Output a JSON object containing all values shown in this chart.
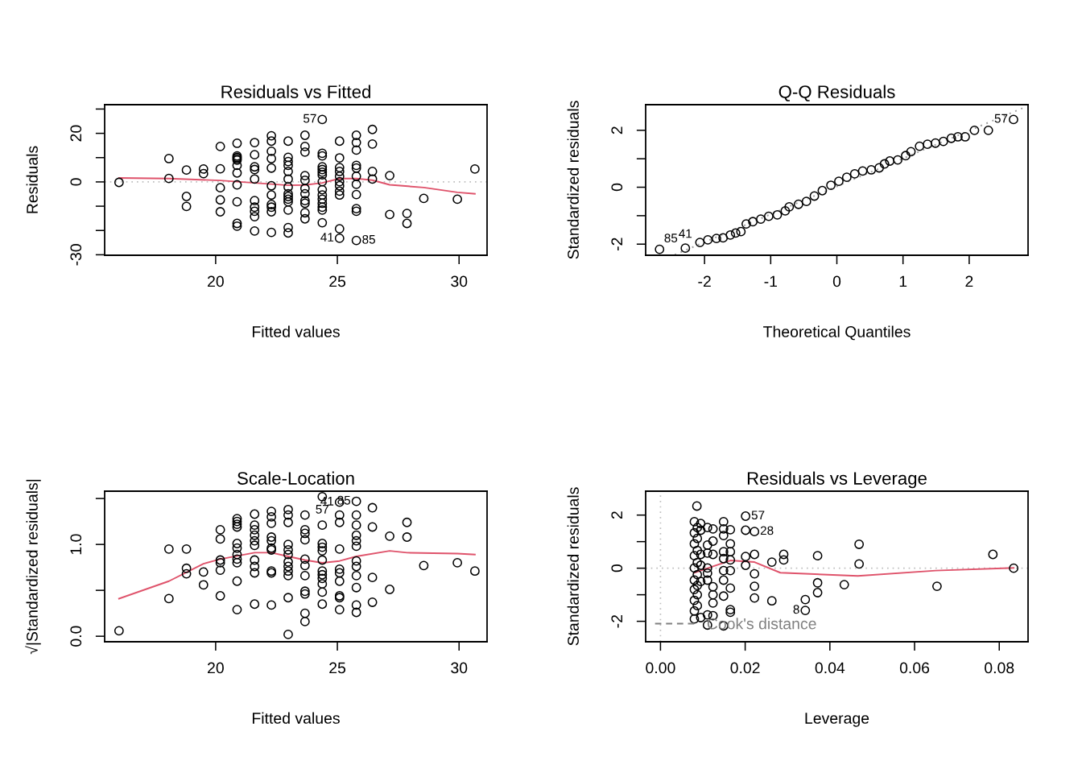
{
  "chart_data": [
    {
      "type": "scatter",
      "title": "Residuals vs Fitted",
      "xlabel": "Fitted values",
      "ylabel": "Residuals",
      "xlim": [
        15.44,
        31.15
      ],
      "ylim": [
        -30.2,
        31.8
      ],
      "xticks": [
        20,
        25,
        30
      ],
      "yticks": [
        -30,
        {
          "value": -20,
          "label": null
        },
        {
          "value": -10,
          "label": null
        },
        0,
        {
          "value": 10,
          "label": null
        },
        20,
        {
          "value": 30,
          "label": null
        }
      ],
      "ref_lines": [
        {
          "axis": "y",
          "value": 0,
          "color": "#bebebe",
          "line_style": "dotted"
        }
      ],
      "annotations": [
        {
          "text": "57",
          "x": 24.38,
          "y": 25.7
        },
        {
          "text": "41",
          "x": 25.09,
          "y": -23.2
        },
        {
          "text": "85",
          "x": 25.78,
          "y": -24.1
        }
      ],
      "series": [
        {
          "marker": "circle",
          "color": "#000000",
          "x": [
            16.03,
            18.08,
            18.08,
            18.8,
            18.8,
            18.8,
            19.5,
            19.5,
            20.19,
            20.19,
            20.19,
            20.19,
            20.19,
            20.88,
            20.88,
            20.88,
            20.88,
            20.88,
            20.88,
            20.88,
            20.88,
            20.88,
            20.88,
            20.88,
            21.6,
            21.6,
            21.6,
            21.6,
            21.6,
            21.6,
            21.6,
            21.6,
            21.6,
            21.6,
            22.29,
            22.29,
            22.29,
            22.29,
            22.29,
            22.29,
            22.29,
            22.29,
            22.29,
            22.29,
            22.29,
            22.98,
            22.98,
            22.98,
            22.98,
            22.98,
            22.98,
            22.98,
            22.98,
            22.98,
            22.98,
            22.98,
            22.98,
            22.98,
            22.98,
            23.67,
            23.67,
            23.67,
            23.67,
            23.67,
            23.67,
            23.67,
            23.67,
            23.67,
            23.67,
            23.67,
            24.38,
            24.38,
            24.38,
            24.38,
            24.38,
            24.38,
            24.38,
            24.38,
            24.38,
            24.38,
            24.38,
            24.38,
            24.38,
            24.38,
            24.38,
            25.09,
            25.09,
            25.09,
            25.09,
            25.09,
            25.09,
            25.09,
            25.09,
            25.09,
            25.09,
            25.09,
            25.78,
            25.78,
            25.78,
            25.78,
            25.78,
            25.78,
            25.78,
            25.78,
            25.78,
            25.78,
            25.78,
            26.44,
            26.44,
            26.44,
            26.44,
            27.15,
            27.15,
            27.86,
            27.86,
            28.55,
            29.93,
            30.65
          ],
          "values": [
            -0.2,
            9.6,
            1.4,
            4.9,
            -6.0,
            -10.1,
            5.3,
            3.4,
            14.6,
            5.4,
            -2.4,
            -7.4,
            -12.3,
            15.9,
            10.7,
            10.1,
            9.6,
            9.0,
            6.8,
            3.7,
            -1.2,
            -8.2,
            -17.1,
            -18.2,
            16.2,
            11.2,
            6.2,
            5.1,
            1.2,
            -7.7,
            -10.4,
            -12.1,
            -14.3,
            -20.2,
            19.0,
            16.8,
            12.6,
            9.6,
            5.7,
            -1.6,
            -5.4,
            -9.3,
            -10.4,
            -12.3,
            -20.8,
            16.8,
            10.1,
            8.4,
            6.8,
            4.3,
            1.2,
            -2.1,
            -4.9,
            -6.0,
            -7.1,
            -8.2,
            -11.6,
            -18.8,
            -21.0,
            19.2,
            14.6,
            12.3,
            2.6,
            0.7,
            -2.7,
            -4.9,
            -7.7,
            -8.8,
            -12.7,
            -15.2,
            25.7,
            11.8,
            10.7,
            6.2,
            5.1,
            4.0,
            2.9,
            0.1,
            -3.2,
            -5.4,
            -7.1,
            -8.8,
            -10.4,
            -11.6,
            -16.8,
            16.8,
            9.9,
            5.9,
            4.3,
            2.3,
            0.1,
            -1.6,
            -3.8,
            -5.4,
            -19.3,
            -23.2,
            19.2,
            16.2,
            13.1,
            6.8,
            5.7,
            2.3,
            -1.0,
            -5.2,
            -11.0,
            -12.1,
            -24.1,
            21.6,
            15.6,
            4.3,
            1.2,
            2.6,
            -13.4,
            -13.0,
            -17.1,
            -6.8,
            -7.1,
            5.3
          ]
        },
        {
          "type": "line",
          "color": "#df536b",
          "x": [
            16.03,
            18.08,
            20.19,
            20.88,
            21.6,
            22.98,
            23.67,
            24.38,
            25.09,
            25.78,
            26.44,
            27.15,
            28.55,
            29.93,
            30.65
          ],
          "values": [
            1.6,
            1.4,
            0.6,
            0.1,
            -0.4,
            -1.4,
            -1.3,
            -0.4,
            1.4,
            1.4,
            0.7,
            -1.2,
            -2.3,
            -4.3,
            -4.9
          ]
        }
      ]
    },
    {
      "type": "scatter",
      "title": "Q-Q Residuals",
      "xlabel": "Theoretical Quantiles",
      "ylabel": "Standardized residuals",
      "xlim": [
        -2.89,
        2.89
      ],
      "ylim": [
        -2.39,
        2.9
      ],
      "xticks": [
        -2,
        -1,
        0,
        1,
        2
      ],
      "yticks": [
        -2,
        {
          "value": -1,
          "label": null
        },
        0,
        {
          "value": 1,
          "label": null
        },
        2
      ],
      "annotations": [
        {
          "text": "85",
          "x": -2.68,
          "y": -2.18
        },
        {
          "text": "41",
          "x": -2.29,
          "y": -2.14
        },
        {
          "text": "57",
          "x": 2.67,
          "y": 2.38
        }
      ],
      "series": [
        {
          "marker": "circle",
          "color": "#000000",
          "x": [
            -2.68,
            -2.29,
            -2.07,
            -1.95,
            -1.82,
            -1.72,
            -1.61,
            -1.53,
            -1.45,
            -1.37,
            -1.27,
            -1.15,
            -1.03,
            -0.9,
            -0.78,
            -0.72,
            -0.58,
            -0.46,
            -0.34,
            -0.22,
            -0.09,
            0.03,
            0.15,
            0.27,
            0.39,
            0.52,
            0.64,
            0.72,
            0.8,
            0.92,
            1.04,
            1.12,
            1.25,
            1.37,
            1.49,
            1.61,
            1.73,
            1.83,
            1.94,
            2.08,
            2.29,
            2.67
          ],
          "values": [
            -2.18,
            -2.14,
            -1.94,
            -1.85,
            -1.8,
            -1.78,
            -1.68,
            -1.61,
            -1.56,
            -1.29,
            -1.21,
            -1.12,
            -1.02,
            -0.97,
            -0.83,
            -0.69,
            -0.6,
            -0.5,
            -0.31,
            -0.12,
            0.07,
            0.21,
            0.35,
            0.47,
            0.57,
            0.61,
            0.68,
            0.82,
            0.92,
            0.96,
            1.11,
            1.25,
            1.44,
            1.51,
            1.55,
            1.61,
            1.72,
            1.77,
            1.77,
            2.0,
            2.0,
            2.38
          ]
        },
        {
          "type": "line",
          "color": "#9e9e9e",
          "line_style": "dotted",
          "x": [
            -2.45,
            2.87
          ],
          "values": [
            -2.37,
            2.84
          ]
        }
      ]
    },
    {
      "type": "scatter",
      "title": "Scale-Location",
      "xlabel": "Fitted values",
      "ylabel": "√|Standardized residuals|",
      "xlim": [
        15.44,
        31.15
      ],
      "ylim": [
        -0.06,
        1.58
      ],
      "xticks": [
        20,
        25,
        30
      ],
      "yticks": [
        {
          "value": 0,
          "label": "0.0"
        },
        {
          "value": 0.5,
          "label": null
        },
        {
          "value": 1,
          "label": "1.0"
        },
        {
          "value": 1.5,
          "label": null
        }
      ],
      "annotations": [
        {
          "text": "57",
          "x": 24.38,
          "y": 1.52
        },
        {
          "text": "41",
          "x": 25.09,
          "y": 1.46
        },
        {
          "text": "85",
          "x": 25.78,
          "y": 1.47
        }
      ],
      "series": [
        {
          "marker": "circle",
          "color": "#000000",
          "x": [
            16.03,
            18.08,
            18.08,
            18.8,
            18.8,
            18.8,
            19.5,
            19.5,
            20.19,
            20.19,
            20.19,
            20.19,
            20.19,
            20.19,
            20.88,
            20.88,
            20.88,
            20.88,
            20.88,
            20.88,
            20.88,
            20.88,
            20.88,
            20.88,
            20.88,
            21.6,
            21.6,
            21.6,
            21.6,
            21.6,
            21.6,
            21.6,
            21.6,
            21.6,
            21.6,
            22.29,
            22.29,
            22.29,
            22.29,
            22.29,
            22.29,
            22.29,
            22.29,
            22.29,
            22.29,
            22.98,
            22.98,
            22.98,
            22.98,
            22.98,
            22.98,
            22.98,
            22.98,
            22.98,
            22.98,
            22.98,
            22.98,
            23.67,
            23.67,
            23.67,
            23.67,
            23.67,
            23.67,
            23.67,
            23.67,
            23.67,
            23.67,
            23.67,
            24.38,
            24.38,
            24.38,
            24.38,
            24.38,
            24.38,
            24.38,
            24.38,
            24.38,
            24.38,
            24.38,
            24.38,
            25.09,
            25.09,
            25.09,
            25.09,
            25.09,
            25.09,
            25.09,
            25.09,
            25.09,
            25.09,
            25.78,
            25.78,
            25.78,
            25.78,
            25.78,
            25.78,
            25.78,
            25.78,
            25.78,
            25.78,
            25.78,
            25.78,
            26.44,
            26.44,
            26.44,
            26.44,
            27.15,
            27.15,
            27.86,
            27.86,
            28.55,
            29.93,
            30.65
          ],
          "values": [
            0.06,
            0.95,
            0.41,
            0.95,
            0.74,
            0.68,
            0.7,
            0.56,
            1.16,
            1.06,
            0.83,
            0.8,
            0.72,
            0.44,
            1.28,
            1.25,
            1.22,
            1.19,
            1.01,
            0.96,
            0.89,
            0.84,
            0.8,
            0.6,
            0.29,
            1.33,
            1.21,
            1.16,
            1.1,
            1.04,
            0.99,
            0.83,
            0.76,
            0.69,
            0.35,
            1.36,
            1.3,
            1.23,
            1.08,
            1.04,
            0.96,
            0.94,
            0.71,
            0.69,
            0.34,
            1.38,
            1.32,
            1.24,
            1.0,
            0.94,
            0.89,
            0.81,
            0.76,
            0.71,
            0.66,
            0.42,
            0.02,
            1.32,
            1.16,
            1.12,
            1.05,
            0.84,
            0.77,
            0.66,
            0.49,
            0.46,
            0.25,
            0.16,
            1.52,
            1.21,
            1.01,
            0.97,
            0.93,
            0.83,
            0.71,
            0.67,
            0.63,
            0.57,
            0.48,
            0.35,
            1.46,
            1.32,
            1.24,
            0.95,
            0.73,
            0.69,
            0.6,
            0.44,
            0.42,
            0.29,
            1.47,
            1.32,
            1.21,
            1.1,
            1.04,
            0.98,
            0.82,
            0.76,
            0.66,
            0.53,
            0.34,
            0.26,
            1.4,
            1.19,
            0.64,
            0.37,
            1.09,
            0.51,
            1.24,
            1.08,
            0.77,
            0.8,
            0.71
          ]
        },
        {
          "type": "line",
          "color": "#df536b",
          "x": [
            16.03,
            18.08,
            19.5,
            20.19,
            21.6,
            22.29,
            22.98,
            23.67,
            24.38,
            25.09,
            25.78,
            27.15,
            27.86,
            29.93,
            30.65
          ],
          "values": [
            0.41,
            0.6,
            0.79,
            0.84,
            0.91,
            0.91,
            0.87,
            0.83,
            0.8,
            0.82,
            0.87,
            0.93,
            0.91,
            0.9,
            0.89
          ]
        }
      ]
    },
    {
      "type": "scatter",
      "title": "Residuals vs Leverage",
      "xlabel": "Leverage",
      "ylabel": "Standardized residuals",
      "xlim": [
        -0.0035,
        0.0868
      ],
      "ylim": [
        -2.77,
        2.9
      ],
      "xticks": [
        {
          "value": 0,
          "label": "0.00"
        },
        {
          "value": 0.02,
          "label": "0.02"
        },
        {
          "value": 0.04,
          "label": "0.04"
        },
        {
          "value": 0.06,
          "label": "0.06"
        },
        {
          "value": 0.08,
          "label": "0.08"
        }
      ],
      "yticks": [
        -2,
        {
          "value": -1,
          "label": null
        },
        0,
        {
          "value": 1,
          "label": null
        },
        2
      ],
      "ref_lines": [
        {
          "axis": "y",
          "value": 0,
          "color": "#bebebe",
          "line_style": "dotted"
        },
        {
          "axis": "x",
          "value": 0,
          "color": "#bebebe",
          "line_style": "dotted"
        }
      ],
      "annotations": [
        {
          "text": "57",
          "x": 0.0201,
          "y": 1.96
        },
        {
          "text": "28",
          "x": 0.0222,
          "y": 1.38
        },
        {
          "text": "8",
          "x": 0.0342,
          "y": -1.59
        }
      ],
      "legend": "bottom left",
      "series": [
        {
          "marker": "circle",
          "color": "#000000",
          "x": [
            0.0086,
            0.008,
            0.008,
            0.008,
            0.008,
            0.008,
            0.008,
            0.008,
            0.008,
            0.008,
            0.008,
            0.0087,
            0.0087,
            0.0087,
            0.0087,
            0.0087,
            0.0087,
            0.0087,
            0.0087,
            0.0095,
            0.0095,
            0.0095,
            0.0095,
            0.0095,
            0.0095,
            0.0111,
            0.0111,
            0.0111,
            0.0111,
            0.0111,
            0.0111,
            0.0111,
            0.0111,
            0.0124,
            0.0124,
            0.0124,
            0.0124,
            0.0124,
            0.0124,
            0.0124,
            0.0149,
            0.0149,
            0.0149,
            0.0149,
            0.0149,
            0.0149,
            0.0149,
            0.0149,
            0.0149,
            0.0165,
            0.0165,
            0.0165,
            0.0165,
            0.0165,
            0.0165,
            0.0165,
            0.0165,
            0.0201,
            0.0201,
            0.0201,
            0.0201,
            0.0222,
            0.0222,
            0.0222,
            0.0222,
            0.0222,
            0.0263,
            0.0263,
            0.0291,
            0.0291,
            0.0342,
            0.0342,
            0.0371,
            0.0371,
            0.0371,
            0.0434,
            0.0469,
            0.0469,
            0.0653,
            0.0785,
            0.0834
          ],
          "values": [
            2.34,
            1.75,
            1.33,
            0.92,
            0.47,
            0.01,
            -0.45,
            -0.8,
            -1.21,
            -1.61,
            -1.91,
            1.53,
            1.12,
            0.67,
            0.21,
            -0.24,
            -0.65,
            -1.0,
            -1.41,
            1.68,
            1.43,
            0.52,
            0.11,
            -0.5,
            -1.86,
            1.53,
            0.87,
            0.57,
            0.01,
            -0.19,
            -0.45,
            -1.76,
            -2.14,
            1.48,
            1.02,
            0.52,
            -0.7,
            -1.0,
            -1.31,
            -1.79,
            1.75,
            1.48,
            1.23,
            0.62,
            0.36,
            -0.09,
            -0.45,
            -1.05,
            -2.17,
            1.45,
            0.92,
            0.62,
            0.31,
            -0.09,
            -0.75,
            -1.56,
            -1.66,
            1.96,
            1.43,
            0.44,
            0.11,
            1.38,
            0.52,
            -0.21,
            -0.68,
            -1.12,
            0.23,
            -1.23,
            0.52,
            0.31,
            -1.18,
            -1.59,
            0.47,
            -0.55,
            -0.92,
            -0.62,
            0.9,
            0.16,
            -0.68,
            0.52,
            0.0
          ]
        },
        {
          "type": "line",
          "color": "#df536b",
          "x": [
            0.008,
            0.0165,
            0.0222,
            0.0283,
            0.0466,
            0.065,
            0.0834
          ],
          "values": [
            -0.17,
            0.29,
            0.23,
            -0.17,
            -0.29,
            -0.09,
            0.01
          ]
        },
        {
          "type": "line",
          "name": "Cook's distance",
          "color": "#808080",
          "line_style": "dashed"
        }
      ]
    }
  ]
}
